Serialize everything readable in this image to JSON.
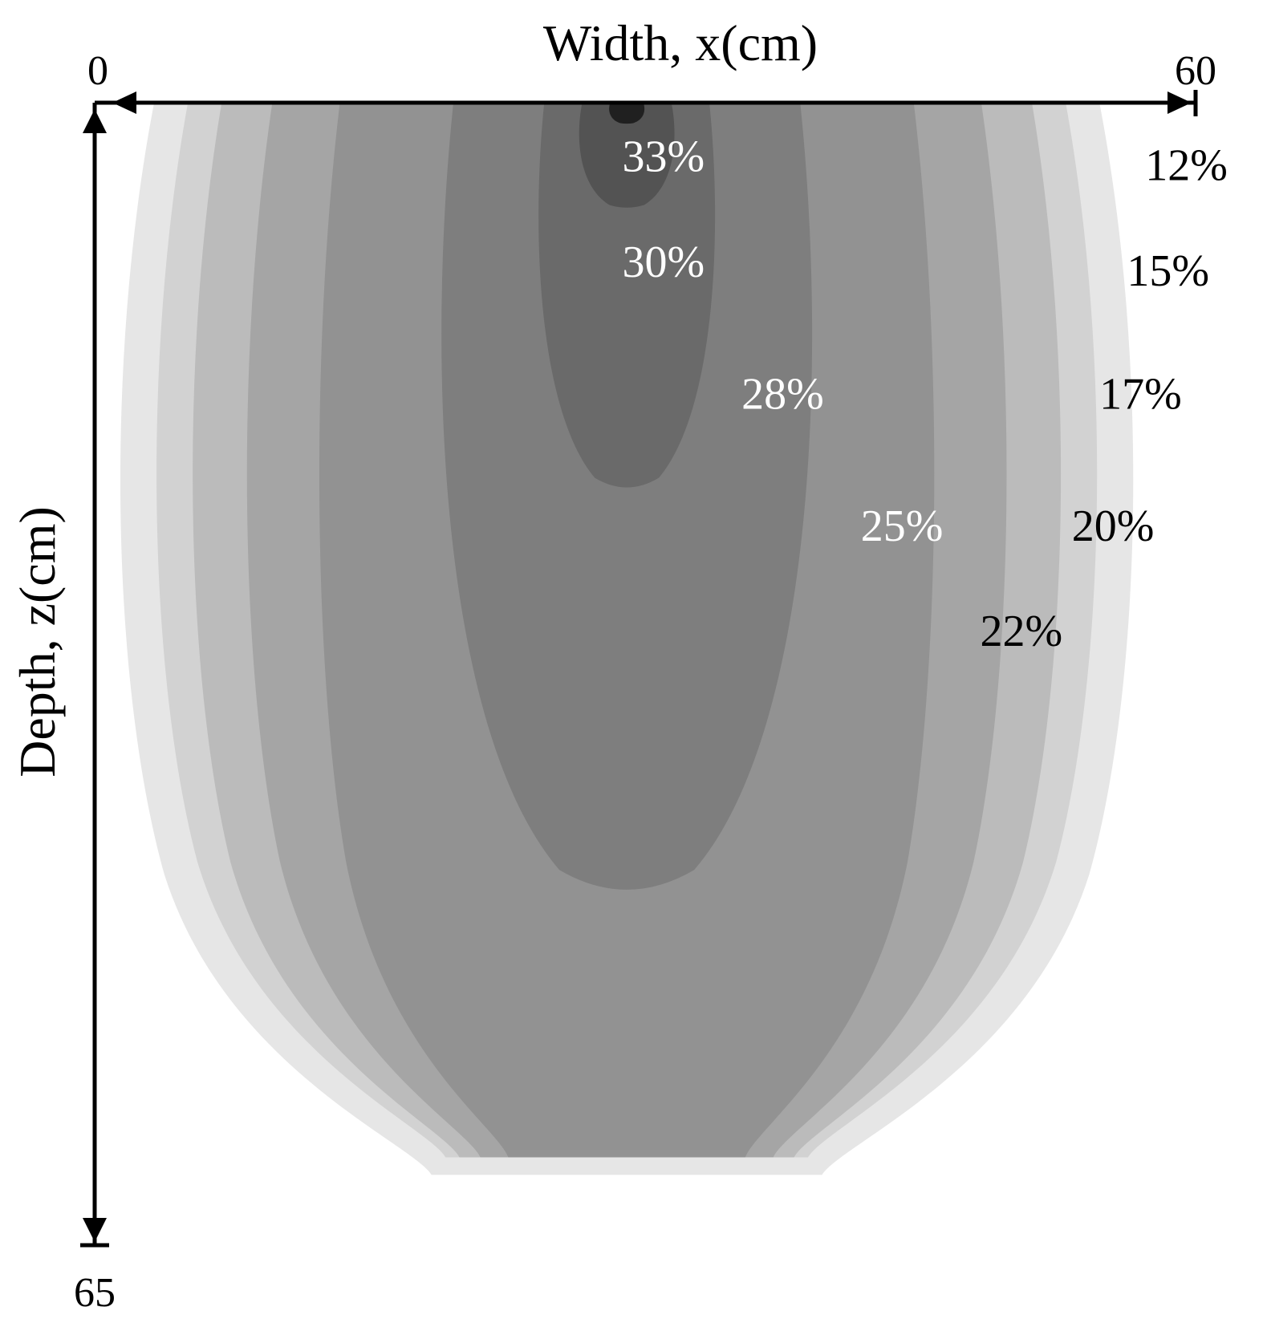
{
  "chart_data": {
    "type": "contour",
    "xlabel": "Width, x(cm)",
    "ylabel": "Depth, z(cm)",
    "xlim": [
      0,
      60
    ],
    "ylim": [
      0,
      65
    ],
    "x_tick_labels": [
      "0",
      "60"
    ],
    "y_tick_labels": [
      "0",
      "65"
    ],
    "source_x_cm": 29,
    "levels": [
      {
        "label": "12%",
        "value": 12,
        "fill": "#e6e6e6",
        "text_color": "#000000",
        "half_width_cm": 28,
        "depth_cm": 61
      },
      {
        "label": "15%",
        "value": 15,
        "fill": "#d2d2d2",
        "text_color": "#000000",
        "half_width_cm": 26,
        "depth_cm": 60
      },
      {
        "label": "17%",
        "value": 17,
        "fill": "#bbbbbb",
        "text_color": "#000000",
        "half_width_cm": 24,
        "depth_cm": 60
      },
      {
        "label": "20%",
        "value": 20,
        "fill": "#a5a5a5",
        "text_color": "#000000",
        "half_width_cm": 21,
        "depth_cm": 60
      },
      {
        "label": "22%",
        "value": 22,
        "fill": "#929292",
        "text_color": "#000000",
        "half_width_cm": 17,
        "depth_cm": 60
      },
      {
        "label": "25%",
        "value": 25,
        "fill": "#7e7e7e",
        "text_color": "#ffffff",
        "half_width_cm": 10.5,
        "depth_cm": 45
      },
      {
        "label": "28%",
        "value": 28,
        "fill": "#6a6a6a",
        "text_color": "#ffffff",
        "half_width_cm": 5,
        "depth_cm": 22
      },
      {
        "label": "30%",
        "value": 30,
        "fill": "#535353",
        "text_color": "#ffffff",
        "half_width_cm": 2.7,
        "depth_cm": 6
      },
      {
        "label": "33%",
        "value": 33,
        "fill": "#202020",
        "text_color": "#ffffff",
        "half_width_cm": 1,
        "depth_cm": 1.2
      }
    ],
    "label_positions": [
      {
        "label": "33%",
        "x": 31,
        "z": 3
      },
      {
        "label": "30%",
        "x": 31,
        "z": 9
      },
      {
        "label": "28%",
        "x": 37.5,
        "z": 16.5
      },
      {
        "label": "25%",
        "x": 44,
        "z": 24
      },
      {
        "label": "22%",
        "x": 50.5,
        "z": 30
      },
      {
        "label": "20%",
        "x": 55.5,
        "z": 24
      },
      {
        "label": "17%",
        "x": 57,
        "z": 16.5
      },
      {
        "label": "15%",
        "x": 58.5,
        "z": 9.5
      },
      {
        "label": "12%",
        "x": 59.5,
        "z": 3.5
      }
    ]
  }
}
